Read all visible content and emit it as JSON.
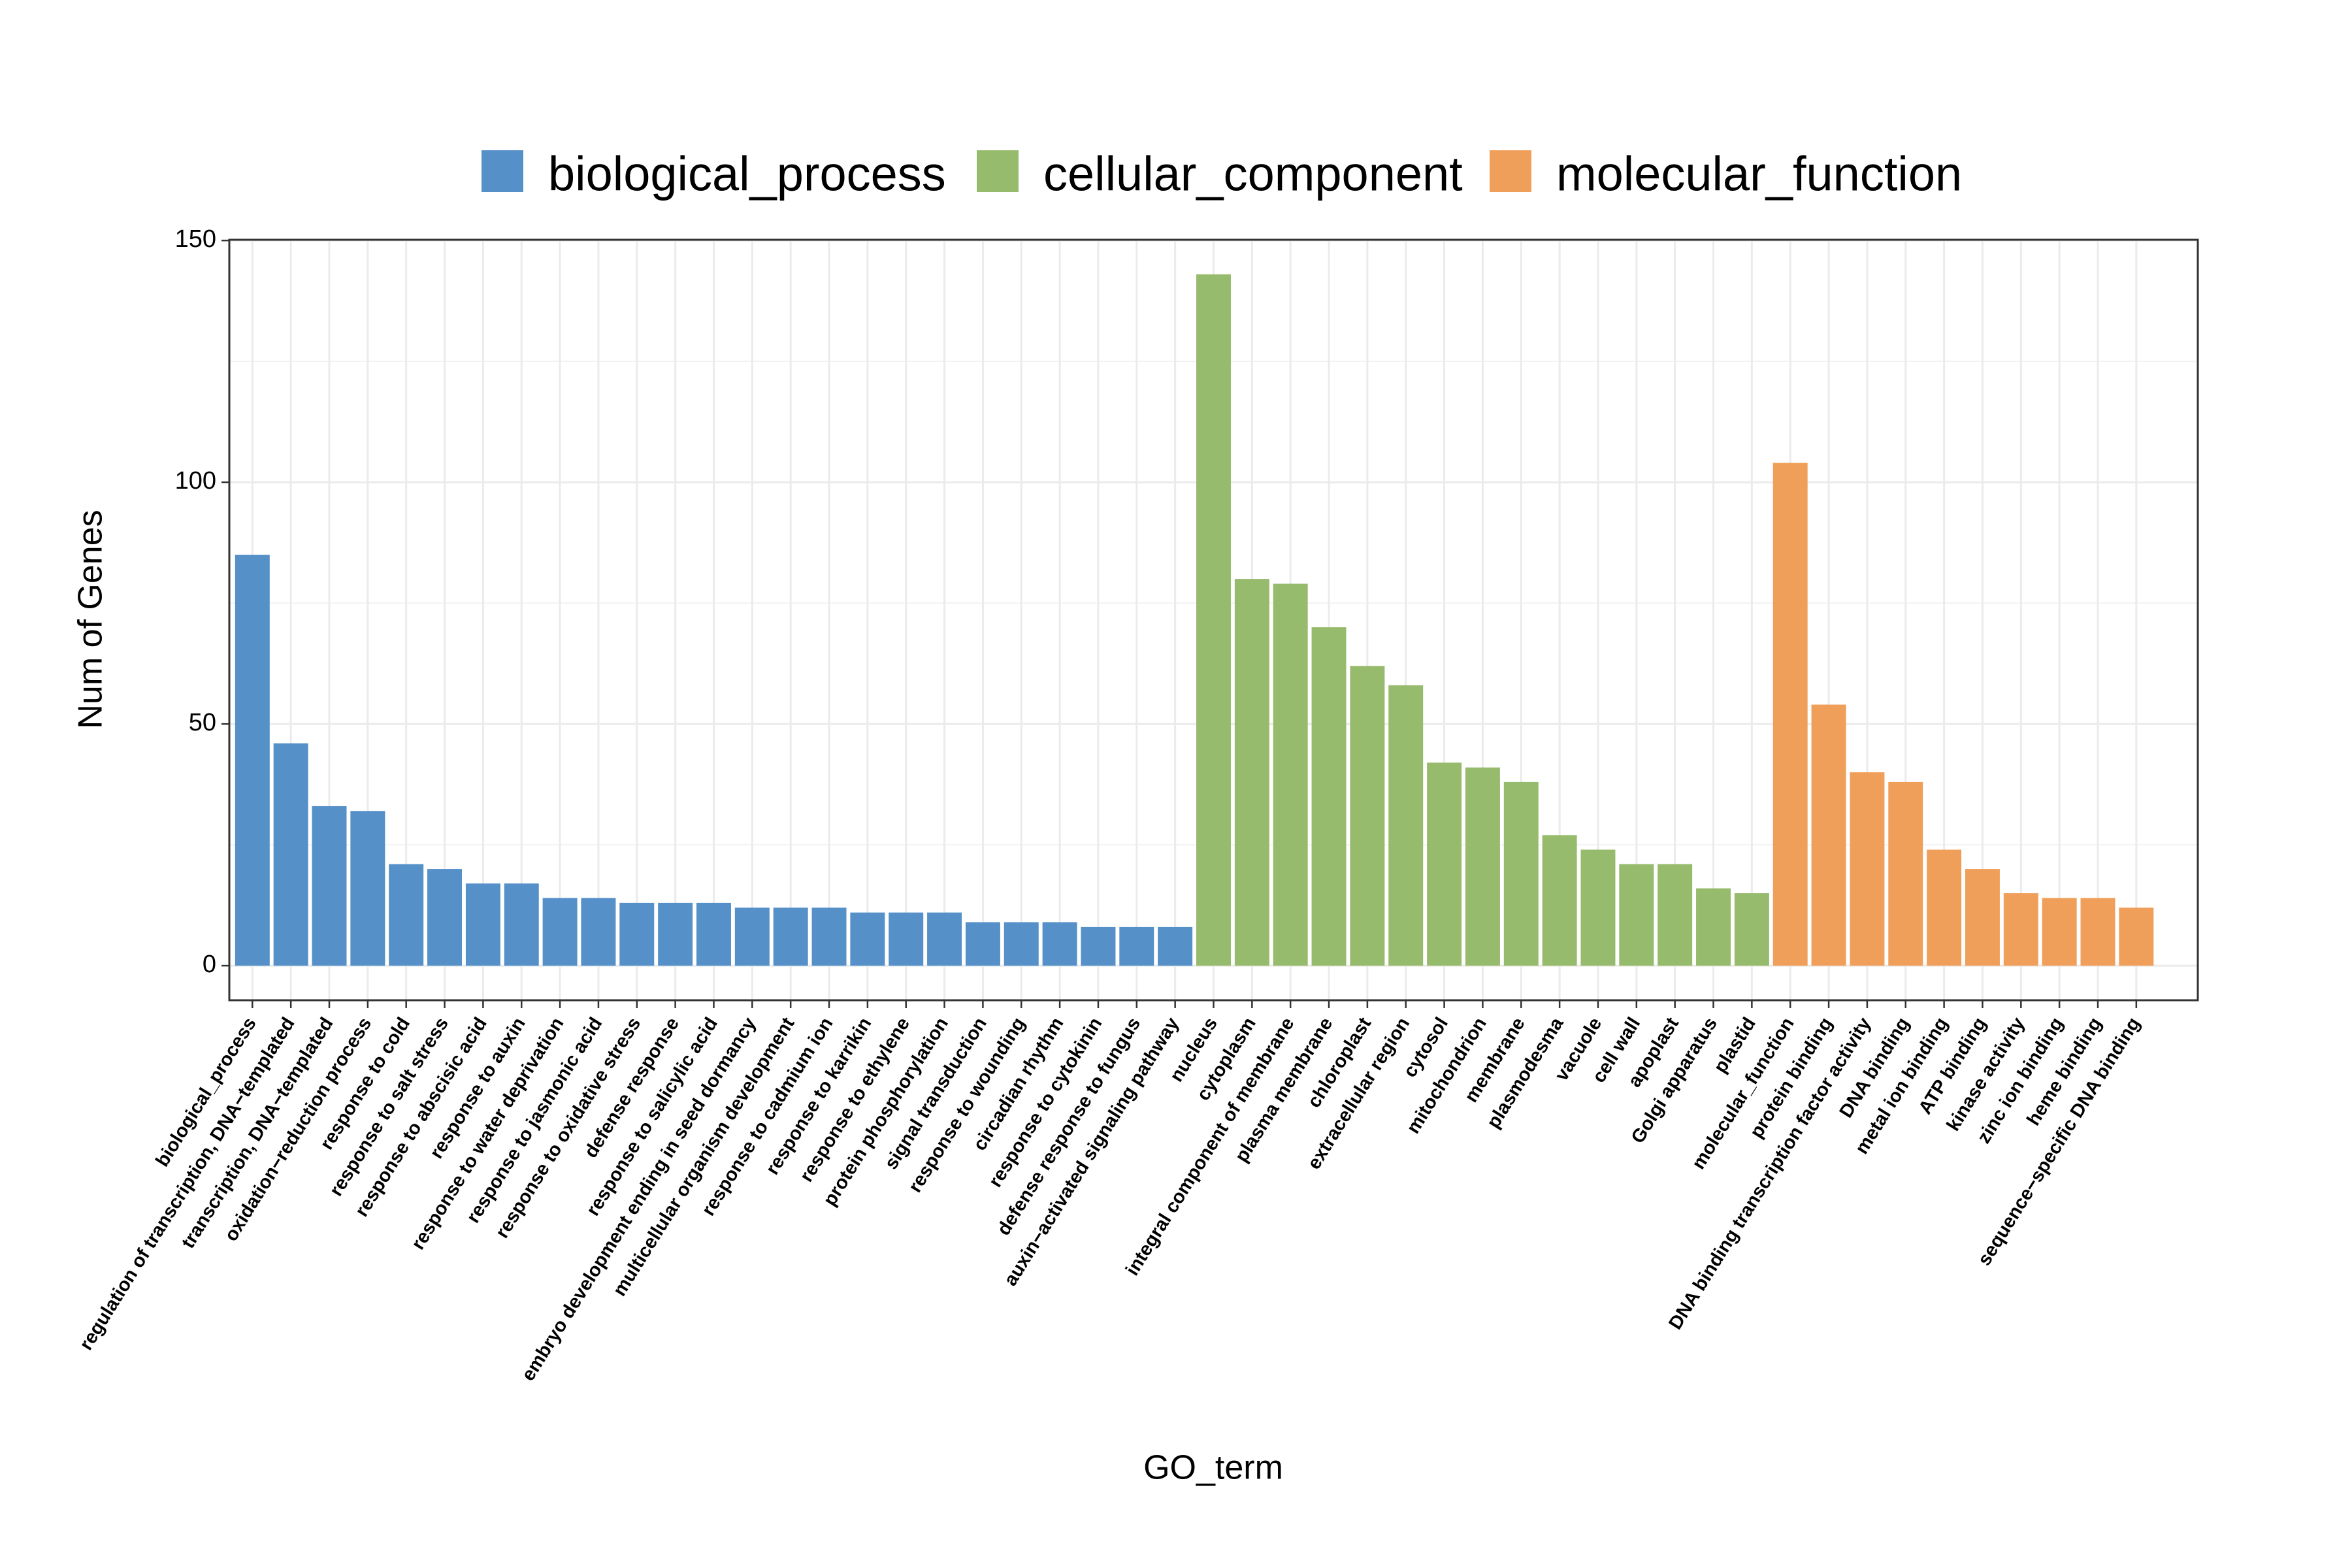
{
  "chart_data": {
    "type": "bar",
    "x_label": "GO_term",
    "y_label": "Num of Genes",
    "categories": [
      "biological_process",
      "regulation of transcription, DNA−templated",
      "transcription, DNA−templated",
      "oxidation−reduction process",
      "response to cold",
      "response to salt stress",
      "response to abscisic acid",
      "response to auxin",
      "response to water deprivation",
      "response to jasmonic acid",
      "response to oxidative stress",
      "defense response",
      "response to salicylic acid",
      "embryo development ending in seed dormancy",
      "multicellular organism development",
      "response to cadmium ion",
      "response to karrikin",
      "response to ethylene",
      "protein phosphorylation",
      "signal transduction",
      "response to wounding",
      "circadian rhythm",
      "response to cytokinin",
      "defense response to fungus",
      "auxin−activated signaling pathway",
      "nucleus",
      "cytoplasm",
      "integral component of membrane",
      "plasma membrane",
      "chloroplast",
      "extracellular region",
      "cytosol",
      "mitochondrion",
      "membrane",
      "plasmodesma",
      "vacuole",
      "cell wall",
      "apoplast",
      "Golgi apparatus",
      "plastid",
      "molecular_function",
      "protein binding",
      "DNA binding transcription factor activity",
      "DNA binding",
      "metal ion binding",
      "ATP binding",
      "kinase activity",
      "zinc ion binding",
      "heme binding",
      "sequence−specific DNA binding"
    ],
    "series": [
      {
        "name": "biological_process",
        "color": "#5590c8",
        "values": [
          85,
          46,
          33,
          32,
          21,
          20,
          17,
          17,
          14,
          14,
          13,
          13,
          13,
          12,
          12,
          12,
          11,
          11,
          11,
          9,
          9,
          9,
          8,
          8,
          8,
          null,
          null,
          null,
          null,
          null,
          null,
          null,
          null,
          null,
          null,
          null,
          null,
          null,
          null,
          null,
          null,
          null,
          null,
          null,
          null,
          null,
          null,
          null,
          null,
          null
        ]
      },
      {
        "name": "cellular_component",
        "color": "#97bb6c",
        "values": [
          null,
          null,
          null,
          null,
          null,
          null,
          null,
          null,
          null,
          null,
          null,
          null,
          null,
          null,
          null,
          null,
          null,
          null,
          null,
          null,
          null,
          null,
          null,
          null,
          null,
          143,
          80,
          79,
          70,
          62,
          58,
          42,
          41,
          38,
          27,
          24,
          21,
          21,
          16,
          15,
          null,
          null,
          null,
          null,
          null,
          null,
          null,
          null,
          null,
          null
        ]
      },
      {
        "name": "molecular_function",
        "color": "#f09f5a",
        "values": [
          null,
          null,
          null,
          null,
          null,
          null,
          null,
          null,
          null,
          null,
          null,
          null,
          null,
          null,
          null,
          null,
          null,
          null,
          null,
          null,
          null,
          null,
          null,
          null,
          null,
          null,
          null,
          null,
          null,
          null,
          null,
          null,
          null,
          null,
          null,
          null,
          null,
          null,
          null,
          null,
          104,
          54,
          40,
          38,
          24,
          20,
          15,
          14,
          14,
          12
        ]
      }
    ],
    "ylim": [
      -7.15,
      150.15
    ],
    "yticks": [
      0,
      50,
      100,
      150
    ],
    "grid": true,
    "legend": "top"
  }
}
